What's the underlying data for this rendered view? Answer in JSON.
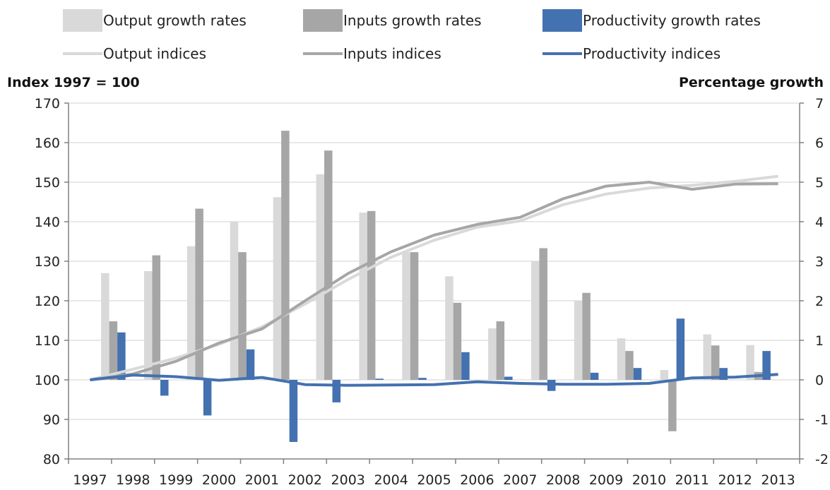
{
  "chart_data": {
    "type": "bar",
    "categories": [
      "1997",
      "1998",
      "1999",
      "2000",
      "2001",
      "2002",
      "2003",
      "2004",
      "2005",
      "2006",
      "2007",
      "2008",
      "2009",
      "2010",
      "2011",
      "2012",
      "2013"
    ],
    "left_axis": {
      "label": "Index 1997 = 100",
      "range": [
        80,
        170
      ],
      "ticks": [
        "80",
        "90",
        "100",
        "110",
        "120",
        "130",
        "140",
        "150",
        "160",
        "170"
      ]
    },
    "right_axis": {
      "label": "Percentage growth",
      "range": [
        -2,
        7
      ],
      "ticks": [
        "-2",
        "-1",
        "0",
        "1",
        "2",
        "3",
        "4",
        "5",
        "6",
        "7"
      ]
    },
    "grid": true,
    "legend_placement": "top",
    "bar_series": [
      {
        "name": "Output growth rates",
        "color": "#d9d9d9",
        "axis": "right",
        "values": [
          2.7,
          2.75,
          3.38,
          4.0,
          4.62,
          5.2,
          4.23,
          3.23,
          2.62,
          1.3,
          3.0,
          2.0,
          1.05,
          0.25,
          1.15,
          0.88
        ]
      },
      {
        "name": "Inputs growth rates",
        "color": "#a6a6a6",
        "axis": "right",
        "values": [
          1.48,
          3.15,
          4.33,
          3.23,
          6.3,
          5.8,
          4.27,
          3.23,
          1.95,
          1.48,
          3.33,
          2.2,
          0.73,
          -1.3,
          0.87,
          0.2
        ]
      },
      {
        "name": "Productivity growth rates",
        "color": "#4471b0",
        "axis": "right",
        "values": [
          1.2,
          -0.4,
          -0.9,
          0.77,
          -1.57,
          -0.57,
          0.03,
          0.05,
          0.7,
          0.08,
          -0.28,
          0.18,
          0.3,
          1.55,
          0.3,
          0.73
        ]
      }
    ],
    "line_series": [
      {
        "name": "Output indices",
        "color": "#d9d9d9",
        "axis": "left",
        "values": [
          100,
          102.7,
          105.5,
          109.0,
          113.4,
          119.2,
          125.4,
          131.0,
          135.3,
          138.6,
          140.2,
          144.3,
          147.0,
          148.5,
          149.2,
          150.2,
          151.5
        ]
      },
      {
        "name": "Inputs indices",
        "color": "#a6a6a6",
        "axis": "left",
        "values": [
          100,
          101.5,
          104.7,
          109.3,
          112.9,
          120.0,
          126.9,
          132.4,
          136.6,
          139.3,
          141.1,
          145.8,
          149.0,
          150.0,
          148.2,
          149.5,
          149.6
        ]
      },
      {
        "name": "Productivity indices",
        "color": "#4471b0",
        "axis": "left",
        "values": [
          100,
          101.2,
          100.8,
          99.9,
          100.6,
          98.8,
          98.6,
          98.7,
          98.8,
          99.5,
          99.1,
          98.9,
          98.9,
          99.1,
          100.5,
          100.7,
          101.4
        ]
      }
    ]
  }
}
